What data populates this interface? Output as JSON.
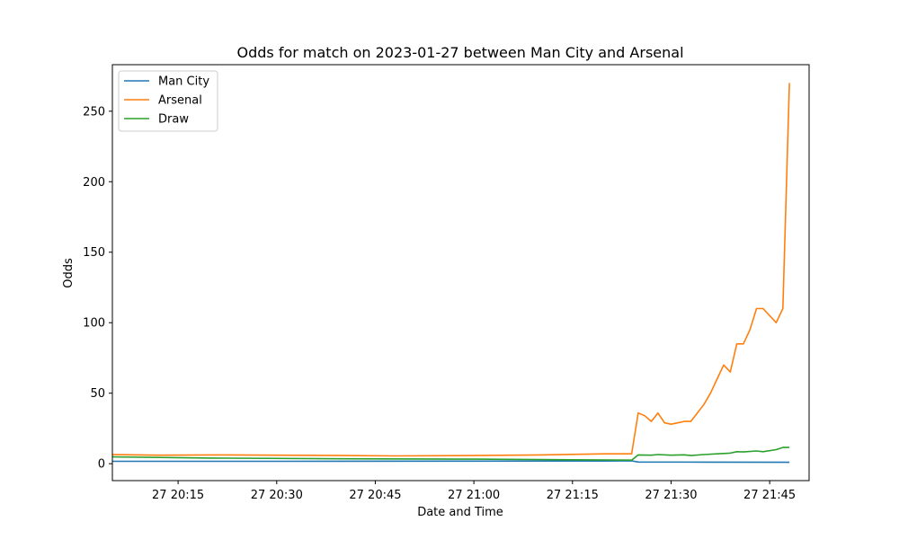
{
  "chart_data": {
    "type": "line",
    "title": "Odds for match on 2023-01-27 between Man City and Arsenal",
    "xlabel": "Date and Time",
    "ylabel": "Odds",
    "xlim": [
      "2023-01-27 20:05",
      "2023-01-27 21:51"
    ],
    "ylim": [
      -12,
      283
    ],
    "x_ticks": [
      "2023-01-27 20:15",
      "2023-01-27 20:30",
      "2023-01-27 20:45",
      "2023-01-27 21:00",
      "2023-01-27 21:15",
      "2023-01-27 21:30",
      "2023-01-27 21:45"
    ],
    "x_tick_labels": [
      "27 20:15",
      "27 20:30",
      "27 20:45",
      "27 21:00",
      "27 21:15",
      "27 21:30",
      "27 21:45"
    ],
    "y_ticks": [
      0,
      50,
      100,
      150,
      200,
      250
    ],
    "y_tick_labels": [
      "0",
      "50",
      "100",
      "150",
      "200",
      "250"
    ],
    "grid": false,
    "legend_position": "upper-left",
    "series": [
      {
        "name": "Man City",
        "color": "#1f77b4",
        "points": [
          [
            "2023-01-27 20:05",
            1.7
          ],
          [
            "2023-01-27 20:30",
            1.7
          ],
          [
            "2023-01-27 21:00",
            1.8
          ],
          [
            "2023-01-27 21:20",
            1.9
          ],
          [
            "2023-01-27 21:24",
            2.0
          ],
          [
            "2023-01-27 21:25",
            1.2
          ],
          [
            "2023-01-27 21:35",
            1.1
          ],
          [
            "2023-01-27 21:48",
            1.0
          ]
        ]
      },
      {
        "name": "Arsenal",
        "color": "#ff7f0e",
        "points": [
          [
            "2023-01-27 20:05",
            6.5
          ],
          [
            "2023-01-27 20:12",
            6.0
          ],
          [
            "2023-01-27 20:20",
            6.2
          ],
          [
            "2023-01-27 20:30",
            6.0
          ],
          [
            "2023-01-27 20:40",
            5.8
          ],
          [
            "2023-01-27 20:48",
            5.5
          ],
          [
            "2023-01-27 21:00",
            5.8
          ],
          [
            "2023-01-27 21:10",
            6.2
          ],
          [
            "2023-01-27 21:20",
            7.0
          ],
          [
            "2023-01-27 21:24",
            7.0
          ],
          [
            "2023-01-27 21:25",
            36
          ],
          [
            "2023-01-27 21:26",
            34
          ],
          [
            "2023-01-27 21:27",
            30
          ],
          [
            "2023-01-27 21:28",
            36
          ],
          [
            "2023-01-27 21:29",
            29
          ],
          [
            "2023-01-27 21:30",
            28
          ],
          [
            "2023-01-27 21:31",
            29
          ],
          [
            "2023-01-27 21:32",
            30
          ],
          [
            "2023-01-27 21:33",
            30
          ],
          [
            "2023-01-27 21:34",
            36
          ],
          [
            "2023-01-27 21:35",
            42
          ],
          [
            "2023-01-27 21:36",
            50
          ],
          [
            "2023-01-27 21:37",
            60
          ],
          [
            "2023-01-27 21:38",
            70
          ],
          [
            "2023-01-27 21:39",
            65
          ],
          [
            "2023-01-27 21:40",
            85
          ],
          [
            "2023-01-27 21:41",
            85
          ],
          [
            "2023-01-27 21:42",
            95
          ],
          [
            "2023-01-27 21:43",
            110
          ],
          [
            "2023-01-27 21:44",
            110
          ],
          [
            "2023-01-27 21:46",
            100
          ],
          [
            "2023-01-27 21:47",
            110
          ],
          [
            "2023-01-27 21:48",
            270
          ]
        ]
      },
      {
        "name": "Draw",
        "color": "#2ca02c",
        "points": [
          [
            "2023-01-27 20:05",
            4.8
          ],
          [
            "2023-01-27 20:20",
            4.0
          ],
          [
            "2023-01-27 20:40",
            3.5
          ],
          [
            "2023-01-27 21:00",
            3.2
          ],
          [
            "2023-01-27 21:15",
            2.8
          ],
          [
            "2023-01-27 21:24",
            2.5
          ],
          [
            "2023-01-27 21:25",
            6.2
          ],
          [
            "2023-01-27 21:27",
            6.0
          ],
          [
            "2023-01-27 21:28",
            6.5
          ],
          [
            "2023-01-27 21:30",
            6.0
          ],
          [
            "2023-01-27 21:32",
            6.3
          ],
          [
            "2023-01-27 21:33",
            5.8
          ],
          [
            "2023-01-27 21:35",
            6.5
          ],
          [
            "2023-01-27 21:37",
            7.0
          ],
          [
            "2023-01-27 21:39",
            7.5
          ],
          [
            "2023-01-27 21:40",
            8.5
          ],
          [
            "2023-01-27 21:41",
            8.3
          ],
          [
            "2023-01-27 21:43",
            9.0
          ],
          [
            "2023-01-27 21:44",
            8.5
          ],
          [
            "2023-01-27 21:46",
            10.0
          ],
          [
            "2023-01-27 21:47",
            11.5
          ],
          [
            "2023-01-27 21:48",
            11.5
          ]
        ]
      }
    ]
  }
}
